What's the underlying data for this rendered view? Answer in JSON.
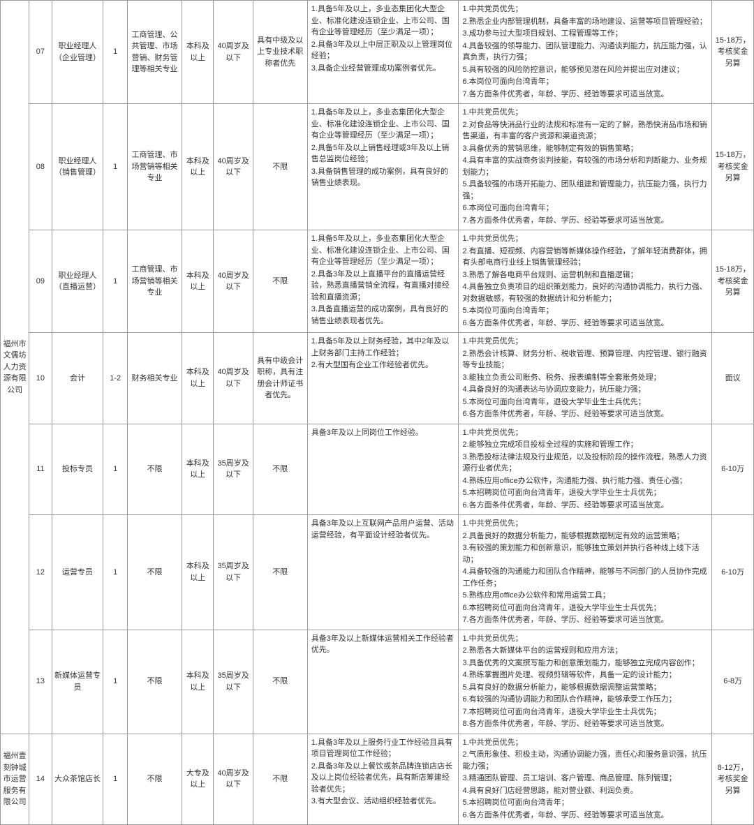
{
  "company1": "福州市文儒坊人力资源有限公司",
  "company2": "福州壹刻钟城市运营服务有限公司",
  "rows": [
    {
      "no": "07",
      "position": "职业经理人（企业管理）",
      "count": "1",
      "major": "工商管理、公共管理、市场营销、财务管理等相关专业",
      "edu": "本科及以上",
      "age": "40周岁及以下",
      "cert": "具有中级及以上专业技术职称者优先",
      "exp": [
        "1.具备5年及以上，多业态集团化大型企业、标准化建设连锁企业、上市公司、国有企业等管理经历（至少满足一项）；",
        "2.具备3年及以上中层正职及以上管理岗位经验；",
        "3.具备企业经营管理成功案例者优先。"
      ],
      "other": [
        "1.中共党员优先；",
        "2.熟悉企业内部管理机制，具备丰富的场地建设、运营等项目管理经验；",
        "3.成功参与过大型项目规划、工程管理等工作；",
        "4.具备较强的领导能力、团队管理能力、沟通谈判能力，抗压能力强，认真负责，执行力强；",
        "5.具有较强的风险防控意识，能够预见潜在风险并提出应对建议；",
        "6.本岗位可面向台湾青年；",
        "7.各方面条件优秀者，年龄、学历、经验等要求可适当放宽。"
      ],
      "salary": "15-18万，考核奖金另算"
    },
    {
      "no": "08",
      "position": "职业经理人（销售管理）",
      "count": "1",
      "major": "工商管理、市场营销等相关专业",
      "edu": "本科及以上",
      "age": "40周岁及以下",
      "cert": "不限",
      "exp": [
        "1.具备5年及以上，多业态集团化大型企业、标准化建设连锁企业、上市公司、国有企业等管理经历（至少满足一项）；",
        "2.具备5年及以上销售经理或3年及以上销售总监岗位经验；",
        "3.具备销售管理的成功案例，具有良好的销售业绩表现。"
      ],
      "other": [
        "1.中共党员优先；",
        "2.对食品等快消品行业的法规和标准有一定的了解，熟悉快消品市场和销售渠道，有丰富的客户资源和渠道资源；",
        "3.具备优秀的营销思维，能够制定有效的销售策略；",
        "4.具有丰富的实战商务谈判技能，有较强的市场分析和判断能力、业务规划能力；",
        "5.具备较强的市场开拓能力、团队组建和管理能力，抗压能力强，执行力强；",
        "6.本岗位可面向台湾青年；",
        "7.各方面条件优秀者，年龄、学历、经验等要求可适当放宽。"
      ],
      "salary": "15-18万，考核奖金另算"
    },
    {
      "no": "09",
      "position": "职业经理人（直播运营）",
      "count": "1",
      "major": "工商管理、市场营销等相关专业",
      "edu": "本科及以上",
      "age": "40周岁及以下",
      "cert": "不限",
      "exp": [
        "1.具备5年及以上，多业态集团化大型企业、标准化建设连锁企业、上市公司、国有企业等管理经历（至少满足一项）；",
        "2.具备3年及以上直播平台的直播运营经验，熟悉直播营销全流程，有直播对接经验和直播资源；",
        "3.具备直播运营的成功案例，具有良好的销售业绩表现者优先。"
      ],
      "other": [
        "1.中共党员优先；",
        "2.有直播、短视频、内容营销等新媒体操作经验，了解年轻消费群体，拥有头部电商行业线上销售管理经验；",
        "3.熟悉了解各电商平台规则、运营机制和直播逻辑；",
        "4.具备独立负责项目的组织策划能力，良好的沟通协调能力，执行力强、对数据敏感，有较强的数据统计和分析能力；",
        "5.本岗位可面向台湾青年；",
        "6.各方面条件优秀者，年龄、学历、经验等要求可适当放宽。"
      ],
      "salary": "15-18万，考核奖金另算"
    },
    {
      "no": "10",
      "position": "会计",
      "count": "1-2",
      "major": "财务相关专业",
      "edu": "本科及以上",
      "age": "40周岁及以下",
      "cert": "具有中级会计职称，具有注册会计师证书者优先。",
      "exp": [
        "1.具备5年及以上财务经验，其中2年及以上财务部门主持工作经验；",
        "2.有大型国有企业工作经验者优先。"
      ],
      "other": [
        "1.中共党员优先；",
        "2.熟悉会计核算、财务分析、税收管理、预算管理、内控管理、银行融资等专业技能；",
        "3.能独立负责公司账务、税务、报表编制等全套账务处理；",
        "4.具备良好的沟通表达与协调应变能力，抗压能力强；",
        "5.本岗位可面向台湾青年，退役大学毕业生士兵优先；",
        "6.各方面条件优秀者，年龄、学历、经验等要求可适当放宽。"
      ],
      "salary": "面议"
    },
    {
      "no": "11",
      "position": "投标专员",
      "count": "1",
      "major": "不限",
      "edu": "本科及以上",
      "age": "35周岁及以下",
      "cert": "不限",
      "exp": [
        "具备3年及以上同岗位工作经验。"
      ],
      "other": [
        "1.中共党员优先；",
        "2.能够独立完成项目投标全过程的实施和管理工作；",
        "3.熟悉投标法律法规及行业规范，以及投标阶段的操作流程，熟悉人力资源行业者优先；",
        "4.熟练应用office办公软件，沟通能力强、执行能力强、责任心强；",
        "5.本招聘岗位可面向台湾青年，退役大学毕业生士兵优先；",
        "6.各方面条件优秀者，年龄、学历、经验等要求可适当放宽。"
      ],
      "salary": "6-10万"
    },
    {
      "no": "12",
      "position": "运营专员",
      "count": "1",
      "major": "不限",
      "edu": "本科及以上",
      "age": "35周岁及以下",
      "cert": "不限",
      "exp": [
        "具备3年及以上互联网产品用户运营、活动运营经验，有平面设计经验者优先。"
      ],
      "other": [
        "1.中共党员优先；",
        "2.具备良好的数据分析能力，能够根据数据制定有效的运营策略；",
        "3.有较强的策划能力和创新意识，能够独立策划并执行各种线上线下活动；",
        "4.具备较强的沟通能力和团队合作精神，能够与不同部门的人员协作完成工作任务；",
        "5.熟练应用office办公软件和常用运营工具；",
        "6.本招聘岗位可面向台湾青年，退役大学毕业生士兵优先；",
        "7.各方面条件优秀者，年龄、学历、经验等要求可适当放宽。"
      ],
      "salary": "6-10万"
    },
    {
      "no": "13",
      "position": "新媒体运营专员",
      "count": "1",
      "major": "不限",
      "edu": "本科及以上",
      "age": "35周岁及以下",
      "cert": "不限",
      "exp": [
        "具备3年及以上新媒体运营相关工作经验者优先。"
      ],
      "other": [
        "1.中共党员优先；",
        "2.熟悉各大新媒体平台的运营规则和应用方法；",
        "3.具备优秀的文案撰写能力和创意策划能力，能够独立完成内容创作；",
        "4.熟练掌握图片处理、视频剪辑等软件，具备一定的设计能力；",
        "5.具有良好的数据分析能力，能够根据数据调整运营策略；",
        "6.有较强的沟通协调能力和团队合作精神，能够承受工作压力；",
        "7.本招聘岗位可面向台湾青年，退役大学毕业生士兵优先；",
        "8.各方面条件优秀者，年龄、学历、经验等要求可适当放宽。"
      ],
      "salary": "6-8万"
    },
    {
      "no": "14",
      "position": "大众茶馆店长",
      "count": "1",
      "major": "不限",
      "edu": "大专及以上",
      "age": "40周岁及以下",
      "cert": "不限",
      "exp": [
        "1.具备3年及以上服务行业工作经验且具有项目管理岗位工作经验；",
        "2.具备3年及以上餐饮或茶品牌连锁店店长及以上岗位经验者优先，具有新店筹建经验者优先；",
        "3.有大型会议、活动组织经验者优先。"
      ],
      "other": [
        "1.中共党员优先；",
        "2.气质形象佳、积极主动，沟通协调能力强，责任心和服务意识强，抗压能力强；",
        "3.精通团队管理、员工培训、客户管理、商品管理、陈列管理；",
        "4.具有良好门店经营思路，能对营业额、利润负责。",
        "5.本招聘岗位可面向台湾青年；",
        "6.各方面条件优秀者，年龄、学历、经验等要求可适当放宽。"
      ],
      "salary": "8-12万，考核奖金另算"
    }
  ]
}
